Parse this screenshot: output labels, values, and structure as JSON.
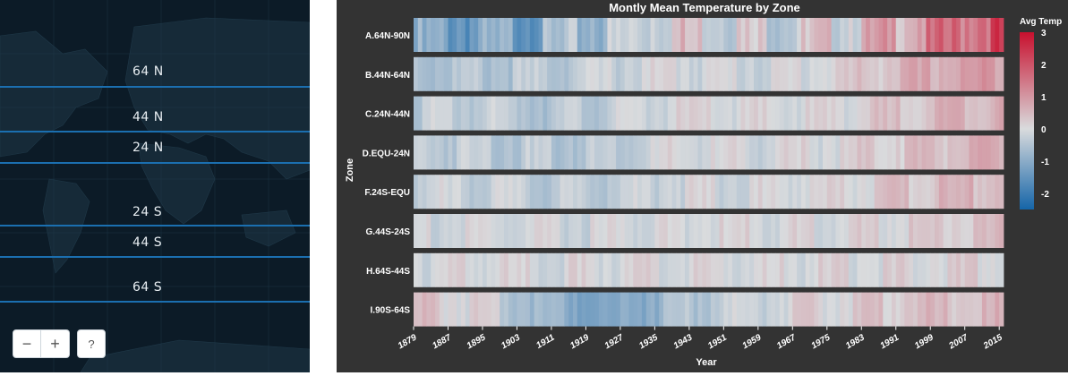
{
  "map": {
    "lines": [
      {
        "label": "64 N"
      },
      {
        "label": "44 N"
      },
      {
        "label": "24 N"
      },
      {
        "label": "24 S"
      },
      {
        "label": "44 S"
      },
      {
        "label": "64 S"
      }
    ],
    "controls": {
      "zoom_out": "−",
      "zoom_in": "+",
      "help": "?"
    }
  },
  "chart_data": {
    "type": "heatmap",
    "title": "Montly Mean Temperature by Zone",
    "xlabel": "Year",
    "ylabel": "Zone",
    "x_range": [
      1879,
      2016
    ],
    "x_ticks": [
      1879,
      1887,
      1895,
      1903,
      1911,
      1919,
      1927,
      1935,
      1943,
      1951,
      1959,
      1967,
      1975,
      1983,
      1991,
      1999,
      2007,
      2015
    ],
    "zones": [
      "A.64N-90N",
      "B.44N-64N",
      "C.24N-44N",
      "D.EQU-24N",
      "F.24S-EQU",
      "G.44S-24S",
      "H.64S-44S",
      "I.90S-64S"
    ],
    "trend_anchors": {
      "years": [
        1879,
        1895,
        1910,
        1925,
        1940,
        1950,
        1965,
        1980,
        1995,
        2005,
        2016
      ],
      "values": [
        [
          -1.2,
          -1.3,
          -1.0,
          -0.5,
          0.3,
          0.1,
          -0.1,
          0.2,
          1.0,
          1.5,
          2.2
        ],
        [
          -0.5,
          -0.5,
          -0.4,
          -0.2,
          0.0,
          -0.1,
          -0.1,
          0.2,
          0.6,
          0.8,
          1.0
        ],
        [
          -0.3,
          -0.3,
          -0.45,
          -0.3,
          0.0,
          0.0,
          -0.05,
          0.1,
          0.4,
          0.6,
          0.7
        ],
        [
          -0.3,
          -0.3,
          -0.45,
          -0.35,
          -0.05,
          -0.1,
          -0.05,
          0.1,
          0.4,
          0.5,
          0.6
        ],
        [
          -0.2,
          -0.2,
          -0.4,
          -0.3,
          -0.05,
          -0.1,
          0.0,
          0.1,
          0.35,
          0.5,
          0.6
        ],
        [
          -0.1,
          -0.1,
          -0.15,
          -0.1,
          0.0,
          0.0,
          0.0,
          0.05,
          0.2,
          0.3,
          0.4
        ],
        [
          0.0,
          0.0,
          -0.05,
          0.0,
          0.0,
          0.0,
          0.0,
          0.05,
          0.1,
          0.15,
          0.2
        ],
        [
          0.4,
          0.0,
          -0.8,
          -1.2,
          -0.6,
          -0.3,
          0.0,
          0.2,
          0.4,
          0.4,
          0.5
        ]
      ]
    },
    "color_scale": {
      "domain": [
        -2.5,
        0,
        3
      ],
      "colors": [
        "#1565a8",
        "#d9dbdd",
        "#c8102e"
      ],
      "legend_title": "Avg Temp",
      "legend_ticks": [
        3,
        2,
        1,
        0,
        -1,
        -2
      ]
    }
  },
  "colors": {
    "map_bg": "#0c1b27",
    "land": "#162a38",
    "band_line": "#1b6fb0",
    "panel_bg": "#333333"
  }
}
